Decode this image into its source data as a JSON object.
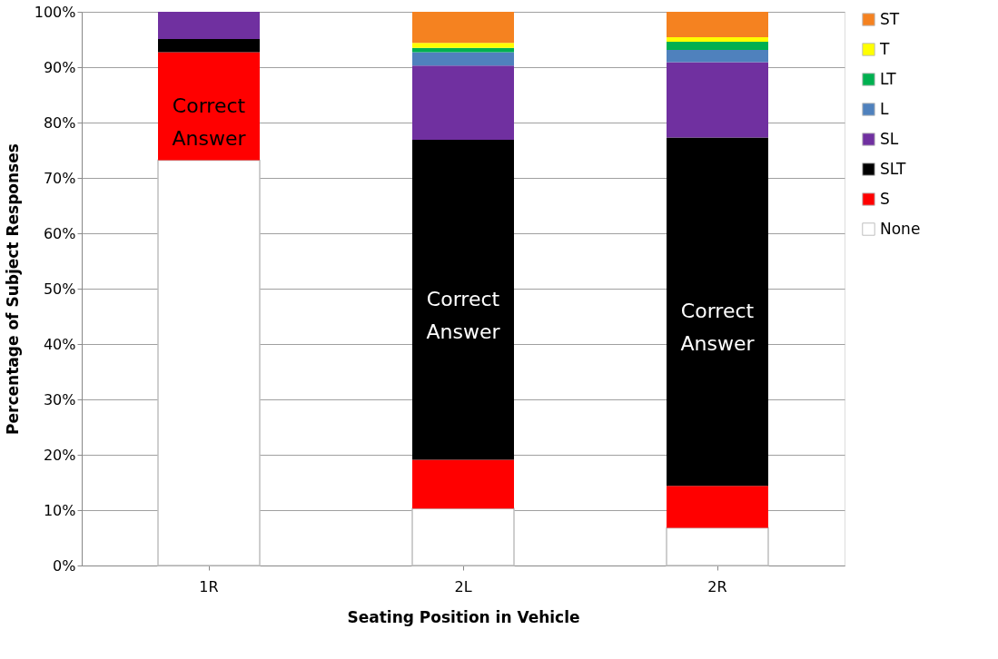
{
  "chart_data": {
    "type": "bar",
    "stacked": true,
    "xlabel": "Seating Position in Vehicle",
    "ylabel": "Percentage of Subject Responses",
    "categories": [
      "1R",
      "2L",
      "2R"
    ],
    "series": [
      {
        "name": "None",
        "color": "#ffffff",
        "values": [
          73.2,
          10.3,
          6.8
        ]
      },
      {
        "name": "S",
        "color": "#ff0000",
        "values": [
          19.5,
          8.8,
          7.6
        ]
      },
      {
        "name": "SLT",
        "color": "#000000",
        "values": [
          2.4,
          57.8,
          62.9
        ]
      },
      {
        "name": "SL",
        "color": "#7030a0",
        "values": [
          4.9,
          13.4,
          13.6
        ]
      },
      {
        "name": "L",
        "color": "#4f81bd",
        "values": [
          0,
          2.4,
          2.2
        ]
      },
      {
        "name": "LT",
        "color": "#00b050",
        "values": [
          0,
          0.8,
          1.5
        ]
      },
      {
        "name": "T",
        "color": "#ffff00",
        "values": [
          0,
          0.9,
          0.8
        ]
      },
      {
        "name": "ST",
        "color": "#f58220",
        "values": [
          0,
          5.6,
          4.6
        ]
      }
    ],
    "ylim": [
      0,
      100
    ],
    "yticks": [
      {
        "value": 0,
        "label": "0%"
      },
      {
        "value": 10,
        "label": "10%"
      },
      {
        "value": 20,
        "label": "20%"
      },
      {
        "value": 30,
        "label": "30%"
      },
      {
        "value": 40,
        "label": "40%"
      },
      {
        "value": 50,
        "label": "50%"
      },
      {
        "value": 60,
        "label": "60%"
      },
      {
        "value": 70,
        "label": "70%"
      },
      {
        "value": 80,
        "label": "80%"
      },
      {
        "value": 90,
        "label": "90%"
      },
      {
        "value": 100,
        "label": "100%"
      }
    ],
    "grid": "y",
    "legend": "right",
    "annotations": [
      "Correct Answer",
      "Correct Answer",
      "Correct Answer"
    ]
  }
}
